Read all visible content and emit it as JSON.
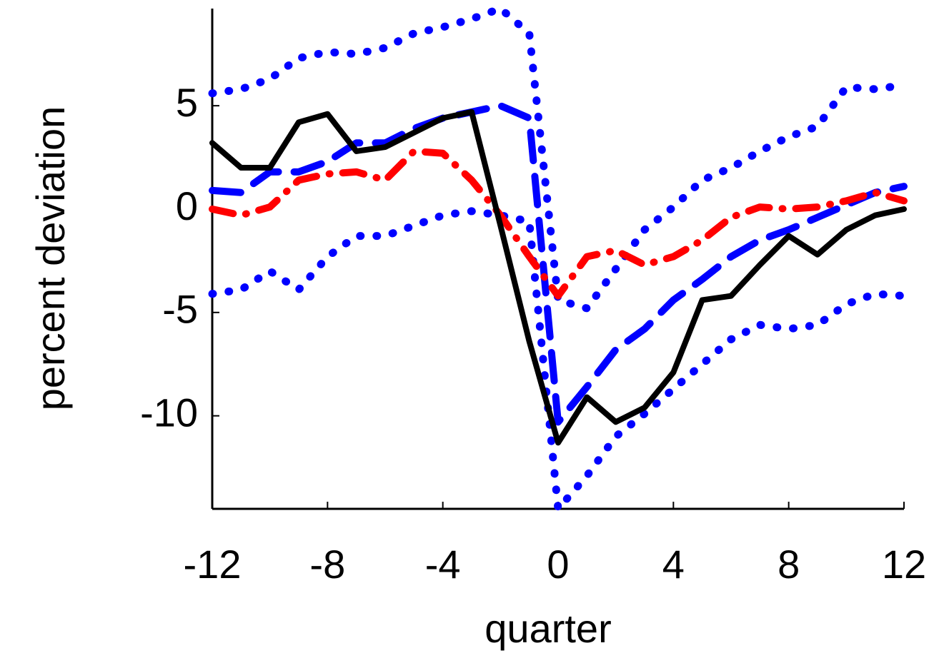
{
  "chart_data": {
    "type": "line",
    "x_label": "quarter",
    "y_label": "percent deviation",
    "x": [
      -12,
      -11,
      -10,
      -9,
      -8,
      -7,
      -6,
      -5,
      -4,
      -3,
      -2,
      -1,
      0,
      1,
      2,
      3,
      4,
      5,
      6,
      7,
      8,
      9,
      10,
      11,
      12
    ],
    "xlim": [
      -12,
      12
    ],
    "xticks": [
      -12,
      -8,
      -4,
      0,
      4,
      8,
      12
    ],
    "ylim": [
      -14.5,
      9.7
    ],
    "yticks": [
      -10,
      -5,
      0,
      5
    ],
    "series": [
      {
        "color": "#0000ff",
        "style": "dotted",
        "values": [
          5.6,
          5.8,
          6.3,
          7.3,
          7.6,
          7.5,
          7.8,
          8.5,
          8.8,
          9.2,
          9.7,
          8.5,
          -4.4,
          -4.8,
          -2.9,
          -1.0,
          0.1,
          1.4,
          2.0,
          2.8,
          3.5,
          4.0,
          5.9,
          5.8,
          6.0
        ]
      },
      {
        "color": "#0000ff",
        "style": "dotted",
        "values": [
          -4.1,
          -3.9,
          -3.0,
          -3.9,
          -2.3,
          -1.3,
          -1.3,
          -0.8,
          -0.3,
          -0.1,
          -0.3,
          -0.6,
          -14.5,
          -12.9,
          -11.0,
          -9.9,
          -8.7,
          -7.5,
          -6.3,
          -5.6,
          -5.8,
          -5.6,
          -4.6,
          -4.1,
          -4.2
        ]
      },
      {
        "color": "#0000ff",
        "style": "dashed",
        "values": [
          0.9,
          0.8,
          1.8,
          1.8,
          2.3,
          3.2,
          3.2,
          3.9,
          4.4,
          4.7,
          5.0,
          4.4,
          -10.3,
          -8.6,
          -6.8,
          -5.8,
          -4.4,
          -3.4,
          -2.3,
          -1.5,
          -1.0,
          -0.4,
          0.2,
          0.8,
          1.1
        ]
      },
      {
        "color": "#ff0000",
        "style": "dashdot",
        "values": [
          0,
          -0.3,
          0.1,
          1.4,
          1.7,
          1.8,
          1.4,
          2.8,
          2.7,
          1.4,
          -0.3,
          -2.3,
          -4.2,
          -2.3,
          -2.0,
          -2.7,
          -2.3,
          -1.5,
          -0.4,
          0.1,
          0,
          0.1,
          0.4,
          0.8,
          0.4
        ]
      },
      {
        "color": "#000000",
        "style": "solid",
        "values": [
          3.2,
          2.0,
          2.0,
          4.2,
          4.6,
          2.8,
          3.0,
          3.7,
          4.4,
          4.7,
          -0.8,
          -6.4,
          -11.3,
          -9.1,
          -10.3,
          -9.6,
          -7.9,
          -4.4,
          -4.2,
          -2.7,
          -1.3,
          -2.2,
          -1.0,
          -0.3,
          0
        ]
      }
    ]
  }
}
